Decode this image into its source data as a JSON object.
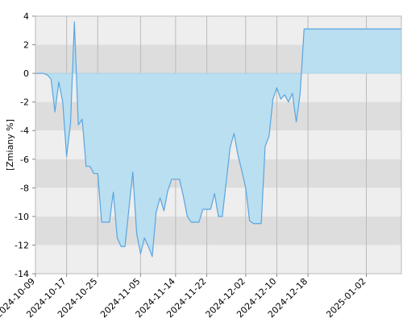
{
  "chart_data": {
    "type": "area",
    "title": "",
    "xlabel": "",
    "ylabel": "[Zmiany %]",
    "ylim": [
      -14,
      4
    ],
    "xlim": [
      "2024-10-09",
      "2025-01-11"
    ],
    "yticks": [
      4,
      2,
      0,
      -2,
      -4,
      -6,
      -8,
      -10,
      -12,
      -14
    ],
    "xticks": [
      "2024-10-09",
      "2024-10-17",
      "2024-10-25",
      "2024-11-05",
      "2024-11-14",
      "2024-11-22",
      "2024-12-02",
      "2024-12-10",
      "2024-12-18",
      "2025-01-02"
    ],
    "grid": true,
    "band_colors": [
      "#eeeeee",
      "#dddddd"
    ],
    "fill_color": "#b9dff0",
    "line_color": "#5aa5e0",
    "series": [
      {
        "x": [
          "2024-10-09",
          "2024-10-10",
          "2024-10-11",
          "2024-10-12",
          "2024-10-13",
          "2024-10-14",
          "2024-10-15",
          "2024-10-16",
          "2024-10-17",
          "2024-10-18",
          "2024-10-19",
          "2024-10-20",
          "2024-10-21",
          "2024-10-22",
          "2024-10-23",
          "2024-10-24",
          "2024-10-25",
          "2024-10-26",
          "2024-10-27",
          "2024-10-28",
          "2024-10-29",
          "2024-10-30",
          "2024-10-31",
          "2024-11-01",
          "2024-11-02",
          "2024-11-03",
          "2024-11-04",
          "2024-11-05",
          "2024-11-06",
          "2024-11-07",
          "2024-11-08",
          "2024-11-09",
          "2024-11-10",
          "2024-11-11",
          "2024-11-12",
          "2024-11-13",
          "2024-11-14",
          "2024-11-15",
          "2024-11-16",
          "2024-11-17",
          "2024-11-18",
          "2024-11-19",
          "2024-11-20",
          "2024-11-21",
          "2024-11-22",
          "2024-11-23",
          "2024-11-24",
          "2024-11-25",
          "2024-11-26",
          "2024-11-27",
          "2024-11-28",
          "2024-11-29",
          "2024-11-30",
          "2024-12-01",
          "2024-12-02",
          "2024-12-03",
          "2024-12-04",
          "2024-12-05",
          "2024-12-06",
          "2024-12-07",
          "2024-12-08",
          "2024-12-09",
          "2024-12-10",
          "2024-12-11",
          "2024-12-12",
          "2024-12-13",
          "2024-12-14",
          "2024-12-15",
          "2024-12-16",
          "2024-12-17",
          "2024-12-18",
          "2024-12-19",
          "2024-12-20",
          "2024-12-21",
          "2024-12-22",
          "2024-12-23",
          "2024-12-24",
          "2024-12-25",
          "2024-12-26",
          "2024-12-27",
          "2024-12-28",
          "2024-12-29",
          "2024-12-30",
          "2024-12-31",
          "2025-01-01",
          "2025-01-02",
          "2025-01-03",
          "2025-01-04",
          "2025-01-05",
          "2025-01-06",
          "2025-01-07",
          "2025-01-08",
          "2025-01-09",
          "2025-01-10",
          "2025-01-11"
        ],
        "y": [
          0,
          0,
          0,
          -0.1,
          -0.4,
          -2.7,
          -0.6,
          -2.0,
          -5.8,
          -3.5,
          3.6,
          -3.6,
          -3.2,
          -6.5,
          -6.5,
          -7.0,
          -7.0,
          -10.4,
          -10.4,
          -10.4,
          -8.3,
          -11.5,
          -12.1,
          -12.1,
          -9.5,
          -6.9,
          -11.2,
          -12.6,
          -11.5,
          -12.1,
          -12.8,
          -9.7,
          -8.7,
          -9.6,
          -8.2,
          -7.4,
          -7.4,
          -7.4,
          -8.6,
          -10.0,
          -10.4,
          -10.4,
          -10.4,
          -9.5,
          -9.5,
          -9.5,
          -8.4,
          -10.0,
          -10.0,
          -7.6,
          -5.2,
          -4.2,
          -5.7,
          -6.8,
          -8.0,
          -10.3,
          -10.5,
          -10.5,
          -10.5,
          -5.1,
          -4.4,
          -1.8,
          -1.0,
          -1.8,
          -1.5,
          -2.0,
          -1.4,
          -3.4,
          -1.4,
          3.1,
          3.1,
          3.1,
          3.1,
          3.1,
          3.1,
          3.1,
          3.1,
          3.1,
          3.1,
          3.1,
          3.1,
          3.1,
          3.1,
          3.1,
          3.1,
          3.1,
          3.1,
          3.1,
          3.1,
          3.1,
          3.1,
          3.1,
          3.1,
          3.1,
          3.1
        ]
      }
    ]
  }
}
